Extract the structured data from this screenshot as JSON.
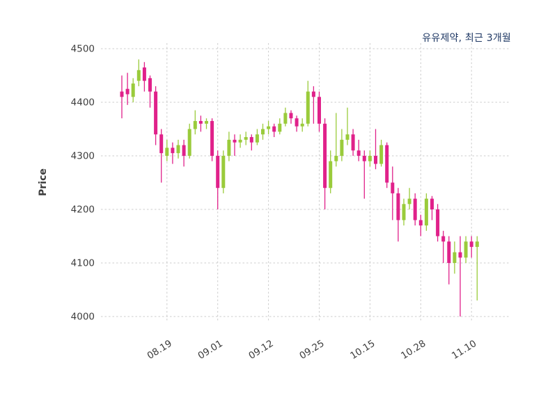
{
  "colors": {
    "up": "#9ACB3B",
    "down": "#E0218A",
    "grid": "#cccccc",
    "title": "#1f3864",
    "tick": "#3d3d3d"
  },
  "chart_data": {
    "type": "candlestick",
    "title": "유유제약, 최근 3개월",
    "ylabel": "Price",
    "ylim": [
      4000,
      4500
    ],
    "yticks": [
      4000,
      4100,
      4200,
      4300,
      4400,
      4500
    ],
    "grid": "dashed, both axes",
    "legend": "none",
    "xticks": [
      {
        "index": 8,
        "label": "08.19"
      },
      {
        "index": 17,
        "label": "09.01"
      },
      {
        "index": 26,
        "label": "09.12"
      },
      {
        "index": 35,
        "label": "09.25"
      },
      {
        "index": 44,
        "label": "10.15"
      },
      {
        "index": 53,
        "label": "10.28"
      },
      {
        "index": 62,
        "label": "11.10"
      }
    ],
    "ohlc_order": [
      "open",
      "high",
      "low",
      "close"
    ],
    "candles": [
      [
        4420,
        4450,
        4370,
        4410
      ],
      [
        4425,
        4455,
        4395,
        4415
      ],
      [
        4410,
        4445,
        4400,
        4435
      ],
      [
        4440,
        4480,
        4430,
        4460
      ],
      [
        4465,
        4475,
        4420,
        4440
      ],
      [
        4445,
        4450,
        4390,
        4420
      ],
      [
        4420,
        4430,
        4320,
        4340
      ],
      [
        4340,
        4350,
        4250,
        4305
      ],
      [
        4300,
        4330,
        4290,
        4315
      ],
      [
        4315,
        4325,
        4285,
        4305
      ],
      [
        4305,
        4330,
        4295,
        4320
      ],
      [
        4320,
        4330,
        4280,
        4300
      ],
      [
        4300,
        4360,
        4295,
        4350
      ],
      [
        4350,
        4385,
        4340,
        4365
      ],
      [
        4365,
        4375,
        4345,
        4360
      ],
      [
        4360,
        4370,
        4350,
        4365
      ],
      [
        4365,
        4370,
        4290,
        4300
      ],
      [
        4300,
        4310,
        4200,
        4240
      ],
      [
        4240,
        4310,
        4230,
        4300
      ],
      [
        4300,
        4345,
        4290,
        4330
      ],
      [
        4330,
        4340,
        4300,
        4325
      ],
      [
        4325,
        4340,
        4315,
        4330
      ],
      [
        4330,
        4345,
        4320,
        4335
      ],
      [
        4335,
        4340,
        4310,
        4325
      ],
      [
        4325,
        4350,
        4320,
        4340
      ],
      [
        4340,
        4360,
        4330,
        4350
      ],
      [
        4350,
        4365,
        4340,
        4355
      ],
      [
        4355,
        4360,
        4335,
        4345
      ],
      [
        4345,
        4370,
        4340,
        4360
      ],
      [
        4360,
        4390,
        4355,
        4380
      ],
      [
        4380,
        4385,
        4360,
        4370
      ],
      [
        4370,
        4375,
        4345,
        4355
      ],
      [
        4355,
        4370,
        4345,
        4360
      ],
      [
        4360,
        4440,
        4355,
        4420
      ],
      [
        4420,
        4430,
        4360,
        4410
      ],
      [
        4410,
        4420,
        4345,
        4360
      ],
      [
        4360,
        4370,
        4200,
        4240
      ],
      [
        4240,
        4310,
        4230,
        4290
      ],
      [
        4290,
        4380,
        4280,
        4300
      ],
      [
        4300,
        4350,
        4290,
        4330
      ],
      [
        4330,
        4390,
        4320,
        4340
      ],
      [
        4340,
        4350,
        4300,
        4310
      ],
      [
        4310,
        4330,
        4290,
        4300
      ],
      [
        4300,
        4310,
        4220,
        4290
      ],
      [
        4290,
        4310,
        4280,
        4300
      ],
      [
        4300,
        4350,
        4275,
        4285
      ],
      [
        4285,
        4330,
        4280,
        4320
      ],
      [
        4320,
        4325,
        4240,
        4250
      ],
      [
        4250,
        4280,
        4180,
        4230
      ],
      [
        4230,
        4240,
        4140,
        4180
      ],
      [
        4180,
        4220,
        4170,
        4210
      ],
      [
        4210,
        4240,
        4200,
        4220
      ],
      [
        4220,
        4230,
        4170,
        4180
      ],
      [
        4180,
        4190,
        4150,
        4170
      ],
      [
        4170,
        4230,
        4160,
        4220
      ],
      [
        4220,
        4225,
        4180,
        4200
      ],
      [
        4200,
        4210,
        4140,
        4150
      ],
      [
        4150,
        4160,
        4100,
        4140
      ],
      [
        4140,
        4150,
        4060,
        4100
      ],
      [
        4100,
        4140,
        4080,
        4120
      ],
      [
        4120,
        4150,
        4000,
        4110
      ],
      [
        4110,
        4150,
        4100,
        4140
      ],
      [
        4140,
        4150,
        4110,
        4130
      ],
      [
        4130,
        4150,
        4030,
        4140
      ]
    ]
  }
}
